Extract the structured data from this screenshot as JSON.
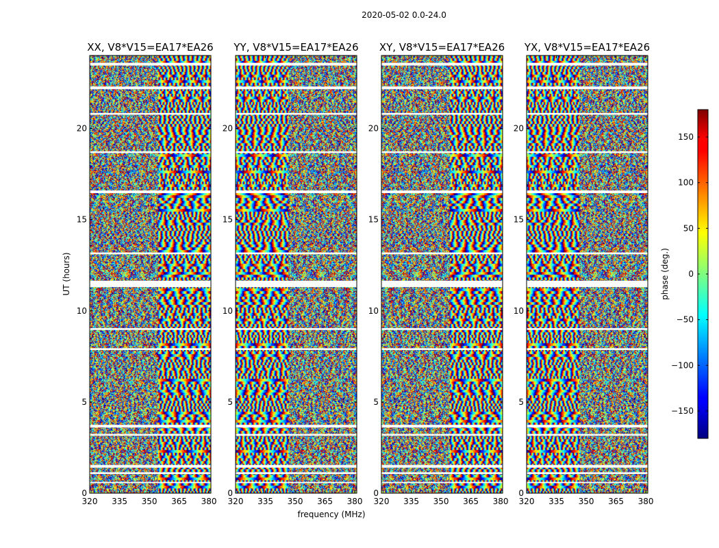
{
  "figure": {
    "suptitle": "2020-05-02 0.0-24.0",
    "colormap": "jet",
    "background": "#ffffff"
  },
  "chart_data": {
    "type": "heatmap",
    "title": "2020-05-02 0.0-24.0",
    "xlabel": "frequency (MHz)",
    "ylabel": "UT (hours)",
    "xlim": [
      320,
      381
    ],
    "ylim": [
      0,
      24
    ],
    "x_ticks": [
      320,
      335,
      350,
      365,
      380
    ],
    "y_ticks": [
      0,
      5,
      10,
      15,
      20
    ],
    "colorbar": {
      "label": "phase (deg.)",
      "range": [
        -180,
        180
      ],
      "ticks": [
        -150,
        -100,
        -50,
        0,
        50,
        100,
        150
      ],
      "tick_labels": [
        "−150",
        "−100",
        "−50",
        "0",
        "50",
        "100",
        "150"
      ],
      "colormap": "jet"
    },
    "flagged_ut_bands_hours": [
      [
        23.45,
        23.6
      ],
      [
        22.15,
        22.3
      ],
      [
        20.75,
        20.85
      ],
      [
        18.65,
        18.75
      ],
      [
        16.45,
        16.6
      ],
      [
        13.1,
        13.2
      ],
      [
        11.3,
        11.65
      ],
      [
        8.95,
        9.05
      ],
      [
        7.85,
        7.95
      ],
      [
        3.6,
        3.75
      ],
      [
        3.15,
        3.25
      ],
      [
        1.4,
        1.55
      ],
      [
        1.05,
        1.15
      ],
      [
        0.55,
        0.62
      ]
    ],
    "panels": [
      {
        "name": "XX",
        "title": "XX, V8*V15=EA17*EA26"
      },
      {
        "name": "YY",
        "title": "YY, V8*V15=EA17*EA26"
      },
      {
        "name": "XY",
        "title": "XY, V8*V15=EA17*EA26"
      },
      {
        "name": "YX",
        "title": "YX, V8*V15=EA17*EA26"
      }
    ]
  }
}
